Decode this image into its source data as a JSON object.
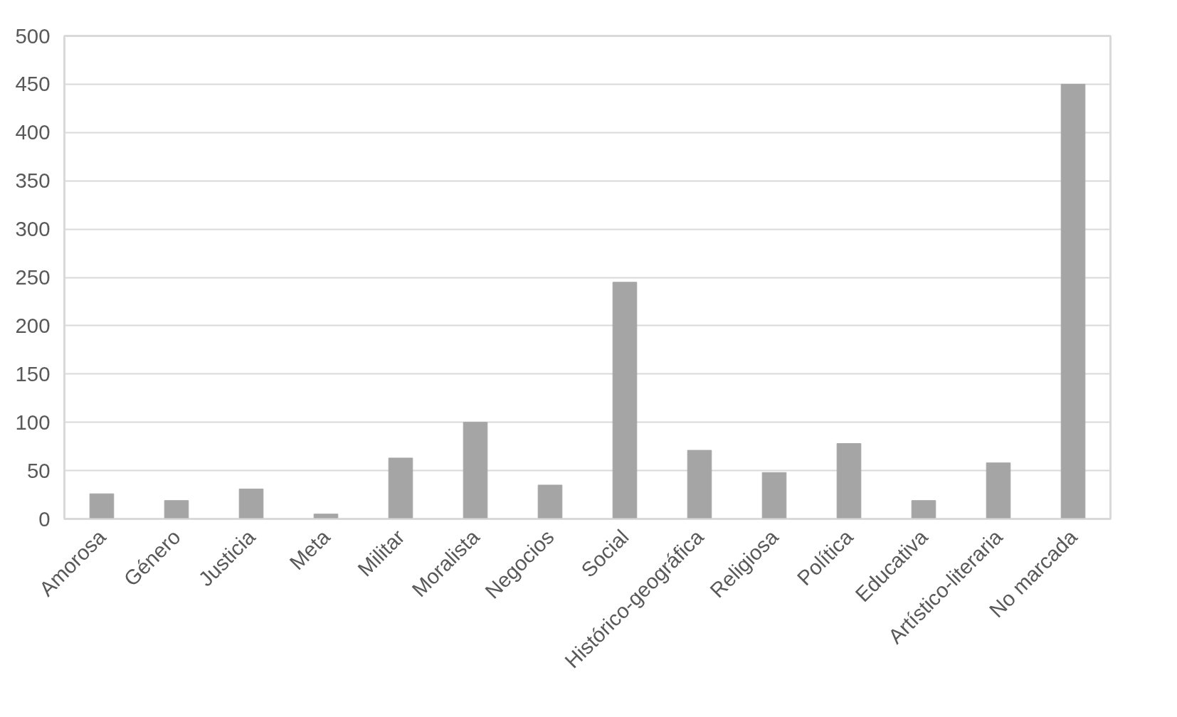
{
  "chart_data": {
    "type": "bar",
    "categories": [
      "Amorosa",
      "Género",
      "Justicia",
      "Meta",
      "Militar",
      "Moralista",
      "Negocios",
      "Social",
      "Histórico-geográfica",
      "Religiosa",
      "Política",
      "Educativa",
      "Artístico-literaria",
      "No marcada"
    ],
    "values": [
      26,
      19,
      31,
      5,
      63,
      100,
      35,
      245,
      71,
      48,
      78,
      19,
      58,
      450
    ],
    "color": "#a5a5a5",
    "ylim": [
      0,
      500
    ],
    "yticks": [
      0,
      50,
      100,
      150,
      200,
      250,
      300,
      350,
      400,
      450,
      500
    ],
    "grid": "y"
  }
}
